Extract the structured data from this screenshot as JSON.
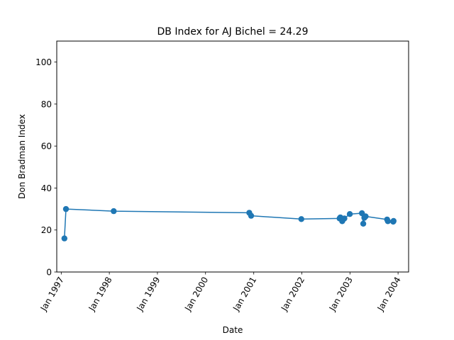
{
  "chart_data": {
    "type": "line",
    "title": "DB Index for AJ Bichel = 24.29",
    "xlabel": "Date",
    "ylabel": "Don Bradman Index",
    "ylim": [
      0,
      110
    ],
    "xlim": [
      "1996-11-28",
      "2004-03-21"
    ],
    "yticks": [
      0,
      20,
      40,
      60,
      80,
      100
    ],
    "xticks": [
      {
        "date": "1997-01-01",
        "label": "Jan 1997"
      },
      {
        "date": "1998-01-01",
        "label": "Jan 1998"
      },
      {
        "date": "1999-01-01",
        "label": "Jan 1999"
      },
      {
        "date": "2000-01-01",
        "label": "Jan 2000"
      },
      {
        "date": "2001-01-01",
        "label": "Jan 2001"
      },
      {
        "date": "2002-01-01",
        "label": "Jan 2002"
      },
      {
        "date": "2003-01-01",
        "label": "Jan 2003"
      },
      {
        "date": "2004-01-01",
        "label": "Jan 2004"
      }
    ],
    "grid": false,
    "color": "#1f77b4",
    "series": [
      {
        "x": [
          "1997-01-25",
          "1997-02-06",
          "1998-02-03",
          "2000-11-28",
          "2000-12-12",
          "2001-12-28",
          "2002-10-14",
          "2002-10-20",
          "2002-10-26",
          "2002-11-03",
          "2002-11-08",
          "2002-11-20",
          "2002-12-31",
          "2003-04-02",
          "2003-04-12",
          "2003-04-20",
          "2003-04-30",
          "2003-10-10",
          "2003-10-16",
          "2003-11-25",
          "2003-11-28"
        ],
        "y": [
          16,
          30,
          29,
          28.2,
          26.8,
          25.2,
          25.5,
          26,
          25.2,
          24.2,
          24.8,
          25.5,
          27.6,
          28,
          23,
          25.8,
          26.5,
          25,
          24.2,
          24,
          24.3
        ]
      }
    ]
  }
}
